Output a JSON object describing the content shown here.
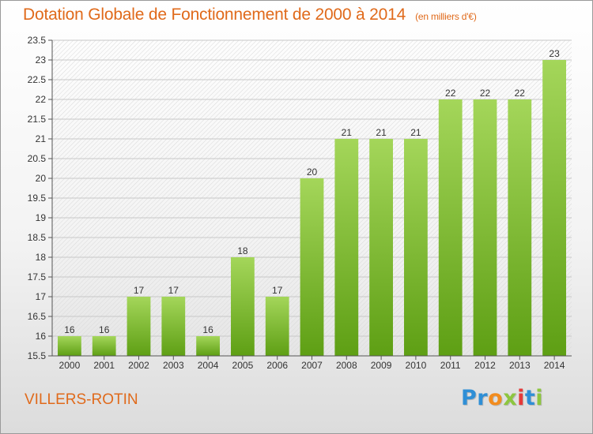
{
  "header": {
    "title": "Dotation Globale de Fonctionnement de 2000 à 2014",
    "unit": "(en milliers d'€)"
  },
  "footer": {
    "commune": "VILLERS-ROTIN",
    "logo_text": "Proxiti"
  },
  "colors": {
    "title": "#e06a1b",
    "bar_top": "#a4d65a",
    "bar_bottom": "#5e9f14",
    "logo_letters": [
      "#2f8fd6",
      "#2f8fd6",
      "#f28c1e",
      "#8dc63f",
      "#e53a3a",
      "#2f8fd6",
      "#8dc63f"
    ]
  },
  "chart_data": {
    "type": "bar",
    "categories": [
      "2000",
      "2001",
      "2002",
      "2003",
      "2004",
      "2005",
      "2006",
      "2007",
      "2008",
      "2009",
      "2010",
      "2011",
      "2012",
      "2013",
      "2014"
    ],
    "values": [
      16,
      16,
      17,
      17,
      16,
      18,
      17,
      20,
      21,
      21,
      21,
      22,
      22,
      22,
      23
    ],
    "data_labels": [
      "16",
      "16",
      "17",
      "17",
      "16",
      "18",
      "17",
      "20",
      "21",
      "21",
      "21",
      "22",
      "22",
      "22",
      "23"
    ],
    "title": "Dotation Globale de Fonctionnement de 2000 à 2014",
    "xlabel": "",
    "ylabel": "",
    "ylim": [
      15.5,
      23.5
    ],
    "yticks": [
      "15.5",
      "16",
      "16.5",
      "17",
      "17.5",
      "18",
      "18.5",
      "19",
      "19.5",
      "20",
      "20.5",
      "21",
      "21.5",
      "22",
      "22.5",
      "23",
      "23.5"
    ],
    "grid": true,
    "legend": "none"
  }
}
